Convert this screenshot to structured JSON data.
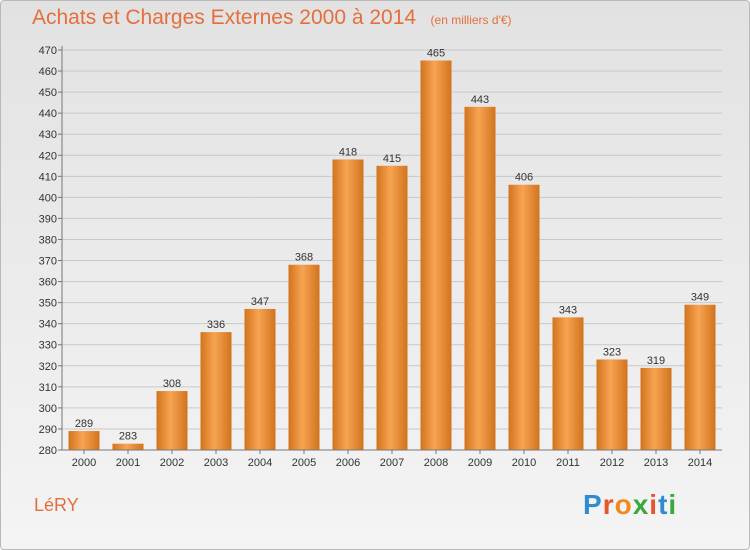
{
  "header": {
    "title": "Achats et Charges Externes 2000 à 2014",
    "subtitle": "(en milliers d'€)"
  },
  "footer": {
    "commune": "LéRY",
    "logo": "Proxiti"
  },
  "colors": {
    "title": "#e56e3c",
    "bar_light": "#f7a452",
    "bar_dark": "#d2731e"
  },
  "chart_data": {
    "type": "bar",
    "categories": [
      "2000",
      "2001",
      "2002",
      "2003",
      "2004",
      "2005",
      "2006",
      "2007",
      "2008",
      "2009",
      "2010",
      "2011",
      "2012",
      "2013",
      "2014"
    ],
    "values": [
      289,
      283,
      308,
      336,
      347,
      368,
      418,
      415,
      465,
      443,
      406,
      343,
      323,
      319,
      349
    ],
    "ylim": [
      280,
      470
    ],
    "ytick_step": 10,
    "grid": true,
    "xlabel": "",
    "ylabel": ""
  }
}
